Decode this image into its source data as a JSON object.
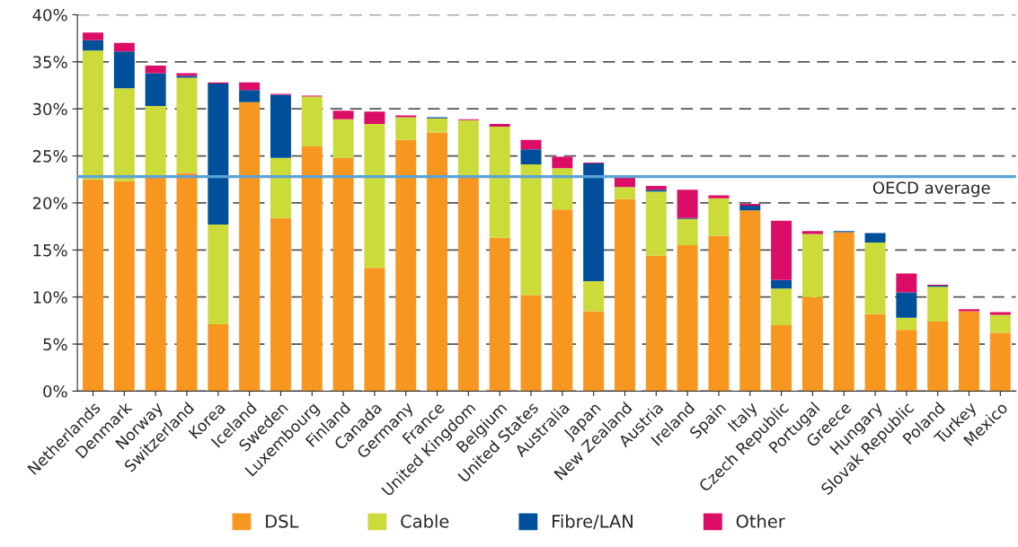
{
  "chart_data": {
    "type": "bar",
    "stacked": true,
    "categories": [
      "Netherlands",
      "Denmark",
      "Norway",
      "Switzerland",
      "Korea",
      "Iceland",
      "Sweden",
      "Luxembourg",
      "Finland",
      "Canada",
      "Germany",
      "France",
      "United Kingdom",
      "Belgium",
      "United States",
      "Australia",
      "Japan",
      "New Zealand",
      "Austria",
      "Ireland",
      "Spain",
      "Italy",
      "Czech Republic",
      "Portugal",
      "Greece",
      "Hungary",
      "Slovak Republic",
      "Poland",
      "Turkey",
      "Mexico"
    ],
    "series": [
      {
        "name": "DSL",
        "color": "#f7971f",
        "values": [
          22.5,
          22.3,
          22.9,
          23.2,
          7.1,
          30.7,
          18.4,
          26.0,
          24.8,
          13.1,
          26.7,
          27.5,
          22.8,
          16.3,
          10.2,
          19.3,
          8.5,
          20.4,
          14.4,
          15.5,
          16.5,
          19.2,
          7.0,
          10.0,
          16.9,
          8.2,
          6.5,
          7.4,
          8.5,
          6.2
        ]
      },
      {
        "name": "Cable",
        "color": "#cadb3a",
        "values": [
          13.7,
          9.9,
          7.4,
          10.1,
          10.6,
          0,
          6.4,
          5.3,
          4.1,
          15.3,
          2.4,
          1.5,
          6.0,
          11.8,
          13.9,
          4.4,
          3.2,
          1.3,
          6.8,
          2.8,
          4.0,
          0,
          3.9,
          6.7,
          0,
          7.6,
          1.3,
          3.7,
          0,
          1.9
        ]
      },
      {
        "name": "Fibre/LAN",
        "color": "#004f9a",
        "values": [
          1.1,
          3.9,
          3.5,
          0.2,
          15.0,
          1.3,
          6.7,
          0,
          0,
          0,
          0,
          0.1,
          0,
          0,
          1.6,
          0,
          12.5,
          0,
          0.2,
          0.1,
          0,
          0.5,
          0.9,
          0,
          0.1,
          1.0,
          2.7,
          0.1,
          0,
          0
        ]
      },
      {
        "name": "Other",
        "color": "#dc0d67",
        "values": [
          0.8,
          0.9,
          0.8,
          0.3,
          0.1,
          0.8,
          0.1,
          0.1,
          0.9,
          1.3,
          0.2,
          0,
          0.1,
          0.3,
          1.0,
          1.2,
          0.1,
          1.0,
          0.4,
          3.0,
          0.3,
          0.2,
          6.3,
          0.3,
          0,
          0,
          2.0,
          0.1,
          0.2,
          0.3
        ]
      }
    ],
    "ylim": [
      0,
      40
    ],
    "yticks": [
      {
        "value": 0,
        "label": "0%"
      },
      {
        "value": 5,
        "label": "5%"
      },
      {
        "value": 10,
        "label": "10%"
      },
      {
        "value": 15,
        "label": "15%"
      },
      {
        "value": 20,
        "label": "20%"
      },
      {
        "value": 25,
        "label": "25%"
      },
      {
        "value": 30,
        "label": "30%"
      },
      {
        "value": 35,
        "label": "35%"
      },
      {
        "value": 40,
        "label": "40%"
      }
    ],
    "grid": "y",
    "legend": "bottom",
    "ref_lines": [
      {
        "axis": "y",
        "value": 22.8,
        "label": "OECD average",
        "color": "#5ba3d6"
      }
    ]
  }
}
